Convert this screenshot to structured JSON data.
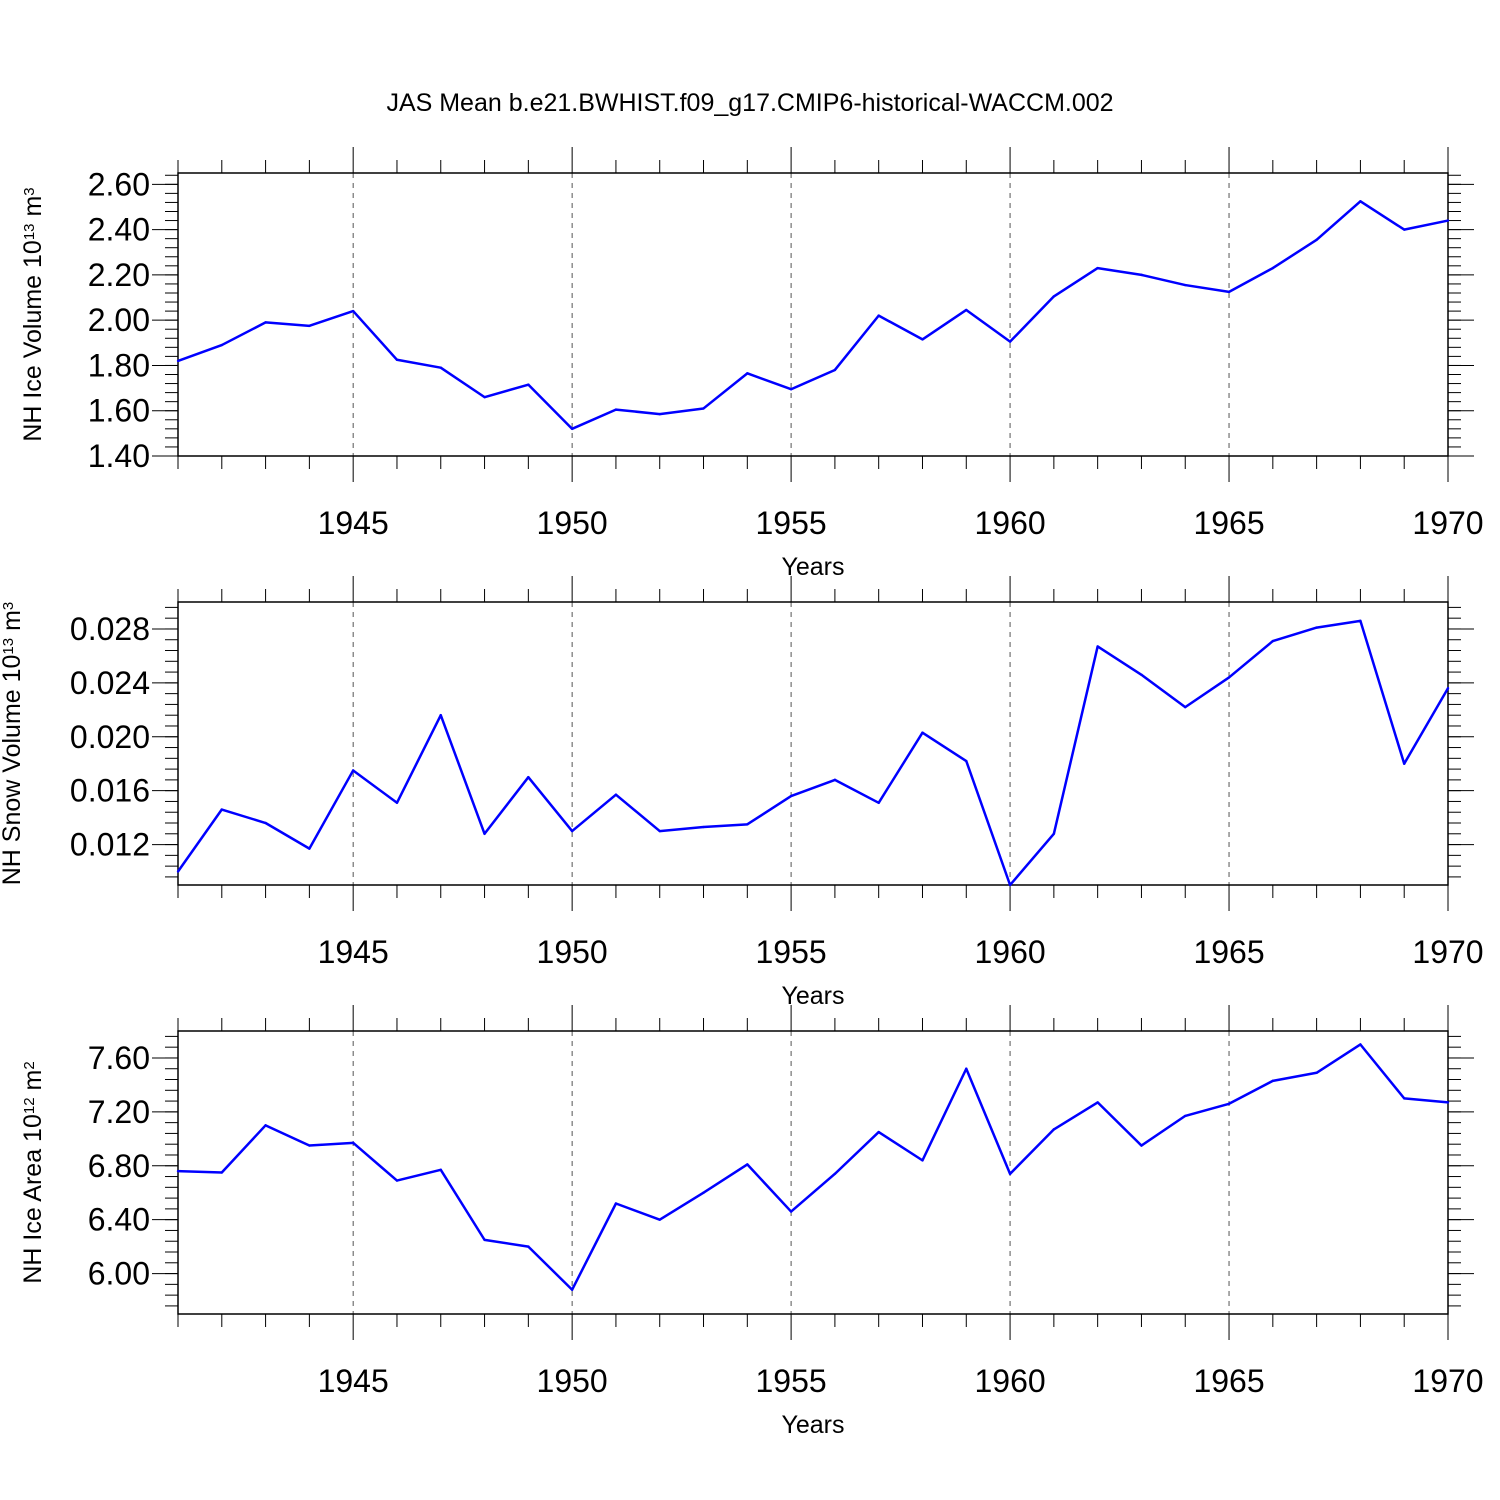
{
  "chart_data": [
    {
      "type": "line",
      "title": "JAS Mean b.e21.BWHIST.f09_g17.CMIP6-historical-WACCM.002",
      "xlabel": "Years",
      "ylabel": "NH Ice Volume 10",
      "ylabel_sup": "13",
      "ylabel_unit": " m",
      "ylabel_unit_sup": "3",
      "xlim": [
        1941,
        1970
      ],
      "ylim": [
        1.4,
        2.65
      ],
      "x_ticks": [
        1945,
        1950,
        1955,
        1960,
        1965,
        1970
      ],
      "x_tick_labels": [
        "1945",
        "1950",
        "1955",
        "1960",
        "1965",
        "1970"
      ],
      "y_ticks": [
        1.4,
        1.6,
        1.8,
        2.0,
        2.2,
        2.4,
        2.6
      ],
      "y_tick_labels": [
        "1.40",
        "1.60",
        "1.80",
        "2.00",
        "2.20",
        "2.40",
        "2.60"
      ],
      "y_minor_step": 0.04,
      "grid": "dashed vertical at major x ticks",
      "line_color": "#0000ff",
      "x": [
        1941,
        1942,
        1943,
        1944,
        1945,
        1946,
        1947,
        1948,
        1949,
        1950,
        1951,
        1952,
        1953,
        1954,
        1955,
        1956,
        1957,
        1958,
        1959,
        1960,
        1961,
        1962,
        1963,
        1964,
        1965,
        1966,
        1967,
        1968,
        1969,
        1970
      ],
      "values": [
        1.82,
        1.89,
        1.99,
        1.975,
        2.04,
        1.825,
        1.79,
        1.66,
        1.715,
        1.52,
        1.605,
        1.585,
        1.61,
        1.765,
        1.695,
        1.78,
        2.02,
        1.915,
        2.045,
        1.905,
        2.105,
        2.23,
        2.2,
        2.155,
        2.125,
        2.23,
        2.355,
        2.525,
        2.4,
        2.44
      ]
    },
    {
      "type": "line",
      "title": "",
      "xlabel": "Years",
      "ylabel": "NH Snow Volume 10",
      "ylabel_sup": "13",
      "ylabel_unit": " m",
      "ylabel_unit_sup": "3",
      "xlim": [
        1941,
        1970
      ],
      "ylim": [
        0.009,
        0.03
      ],
      "x_ticks": [
        1945,
        1950,
        1955,
        1960,
        1965,
        1970
      ],
      "x_tick_labels": [
        "1945",
        "1950",
        "1955",
        "1960",
        "1965",
        "1970"
      ],
      "y_ticks": [
        0.012,
        0.016,
        0.02,
        0.024,
        0.028
      ],
      "y_tick_labels": [
        "0.012",
        "0.016",
        "0.020",
        "0.024",
        "0.028"
      ],
      "y_minor_step": 0.0008,
      "grid": "dashed vertical at major x ticks",
      "line_color": "#0000ff",
      "x": [
        1941,
        1942,
        1943,
        1944,
        1945,
        1946,
        1947,
        1948,
        1949,
        1950,
        1951,
        1952,
        1953,
        1954,
        1955,
        1956,
        1957,
        1958,
        1959,
        1960,
        1961,
        1962,
        1963,
        1964,
        1965,
        1966,
        1967,
        1968,
        1969,
        1970
      ],
      "values": [
        0.01,
        0.0146,
        0.0136,
        0.0117,
        0.0175,
        0.0151,
        0.0216,
        0.0128,
        0.017,
        0.013,
        0.0157,
        0.013,
        0.0133,
        0.0135,
        0.0156,
        0.0168,
        0.0151,
        0.0203,
        0.0182,
        0.009,
        0.0128,
        0.0267,
        0.0246,
        0.0222,
        0.0244,
        0.0271,
        0.0281,
        0.0286,
        0.018,
        0.0236
      ]
    },
    {
      "type": "line",
      "title": "",
      "xlabel": "Years",
      "ylabel": "NH Ice Area 10",
      "ylabel_sup": "12",
      "ylabel_unit": " m",
      "ylabel_unit_sup": "2",
      "xlim": [
        1941,
        1970
      ],
      "ylim": [
        5.7,
        7.8
      ],
      "x_ticks": [
        1945,
        1950,
        1955,
        1960,
        1965,
        1970
      ],
      "x_tick_labels": [
        "1945",
        "1950",
        "1955",
        "1960",
        "1965",
        "1970"
      ],
      "y_ticks": [
        6.0,
        6.4,
        6.8,
        7.2,
        7.6
      ],
      "y_tick_labels": [
        "6.00",
        "6.40",
        "6.80",
        "7.20",
        "7.60"
      ],
      "y_minor_step": 0.08,
      "grid": "dashed vertical at major x ticks",
      "line_color": "#0000ff",
      "x": [
        1941,
        1942,
        1943,
        1944,
        1945,
        1946,
        1947,
        1948,
        1949,
        1950,
        1951,
        1952,
        1953,
        1954,
        1955,
        1956,
        1957,
        1958,
        1959,
        1960,
        1961,
        1962,
        1963,
        1964,
        1965,
        1966,
        1967,
        1968,
        1969,
        1970
      ],
      "values": [
        6.76,
        6.75,
        7.1,
        6.95,
        6.97,
        6.69,
        6.77,
        6.25,
        6.2,
        5.88,
        6.52,
        6.4,
        6.6,
        6.81,
        6.46,
        6.74,
        7.05,
        6.84,
        7.52,
        6.74,
        7.07,
        7.27,
        6.95,
        7.17,
        7.26,
        7.43,
        7.49,
        7.7,
        7.3,
        7.27
      ]
    }
  ]
}
